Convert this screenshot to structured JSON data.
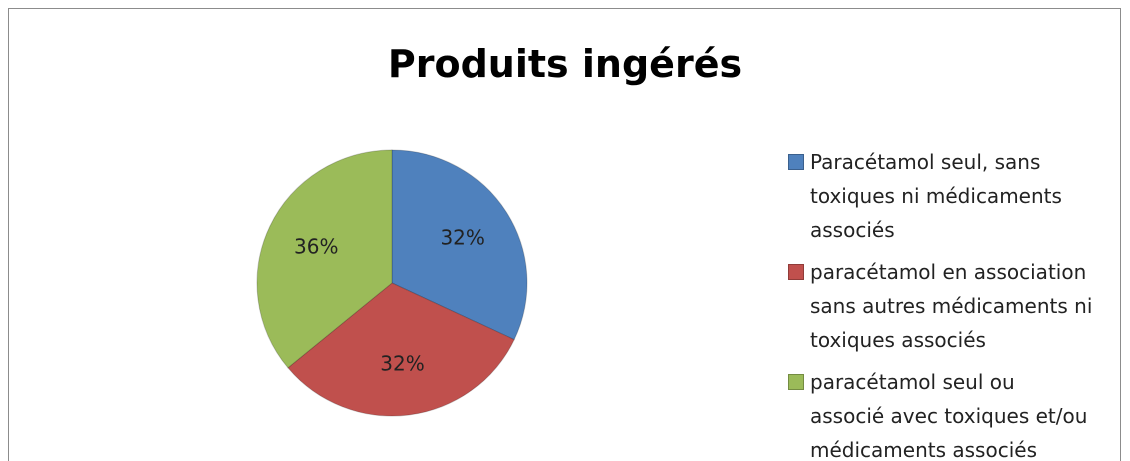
{
  "chart_data": {
    "type": "pie",
    "title": "Produits ingérés",
    "categories": [
      "Paracétamol seul, sans toxiques ni médicaments associés",
      "paracétamol en association sans autres médicaments ni toxiques associés",
      "paracétamol seul ou associé avec toxiques et/ou médicaments associés"
    ],
    "values": [
      32,
      32,
      36
    ],
    "value_labels": [
      "32%",
      "32%",
      "36%"
    ],
    "colors": [
      "#4f81bd",
      "#c0504d",
      "#9bbb59"
    ],
    "legend": "right"
  }
}
